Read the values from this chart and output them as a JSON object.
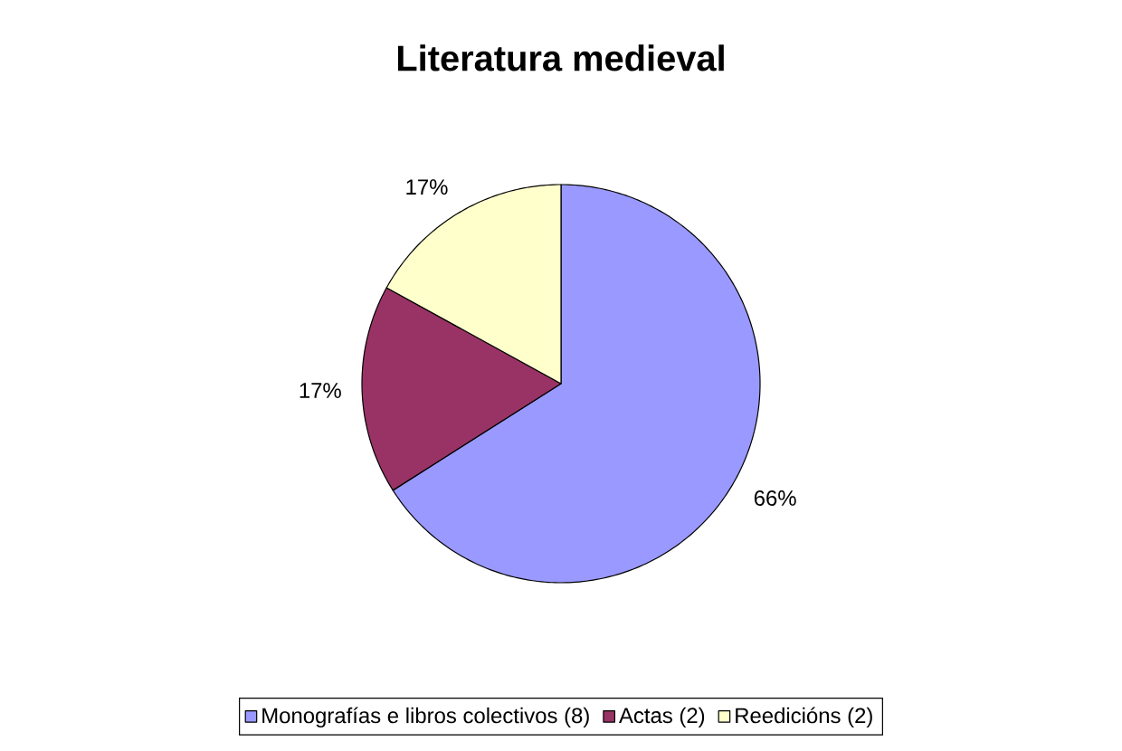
{
  "chart_data": {
    "type": "pie",
    "title": "Literatura medieval",
    "categories": [
      "Monografías e libros colectivos (8)",
      "Actas (2)",
      "Reedicións (2)"
    ],
    "values": [
      66,
      17,
      17
    ],
    "colors": [
      "#9999ff",
      "#993366",
      "#ffffcc"
    ],
    "value_labels": [
      "66%",
      "17%",
      "17%"
    ],
    "legend": "bottom"
  }
}
